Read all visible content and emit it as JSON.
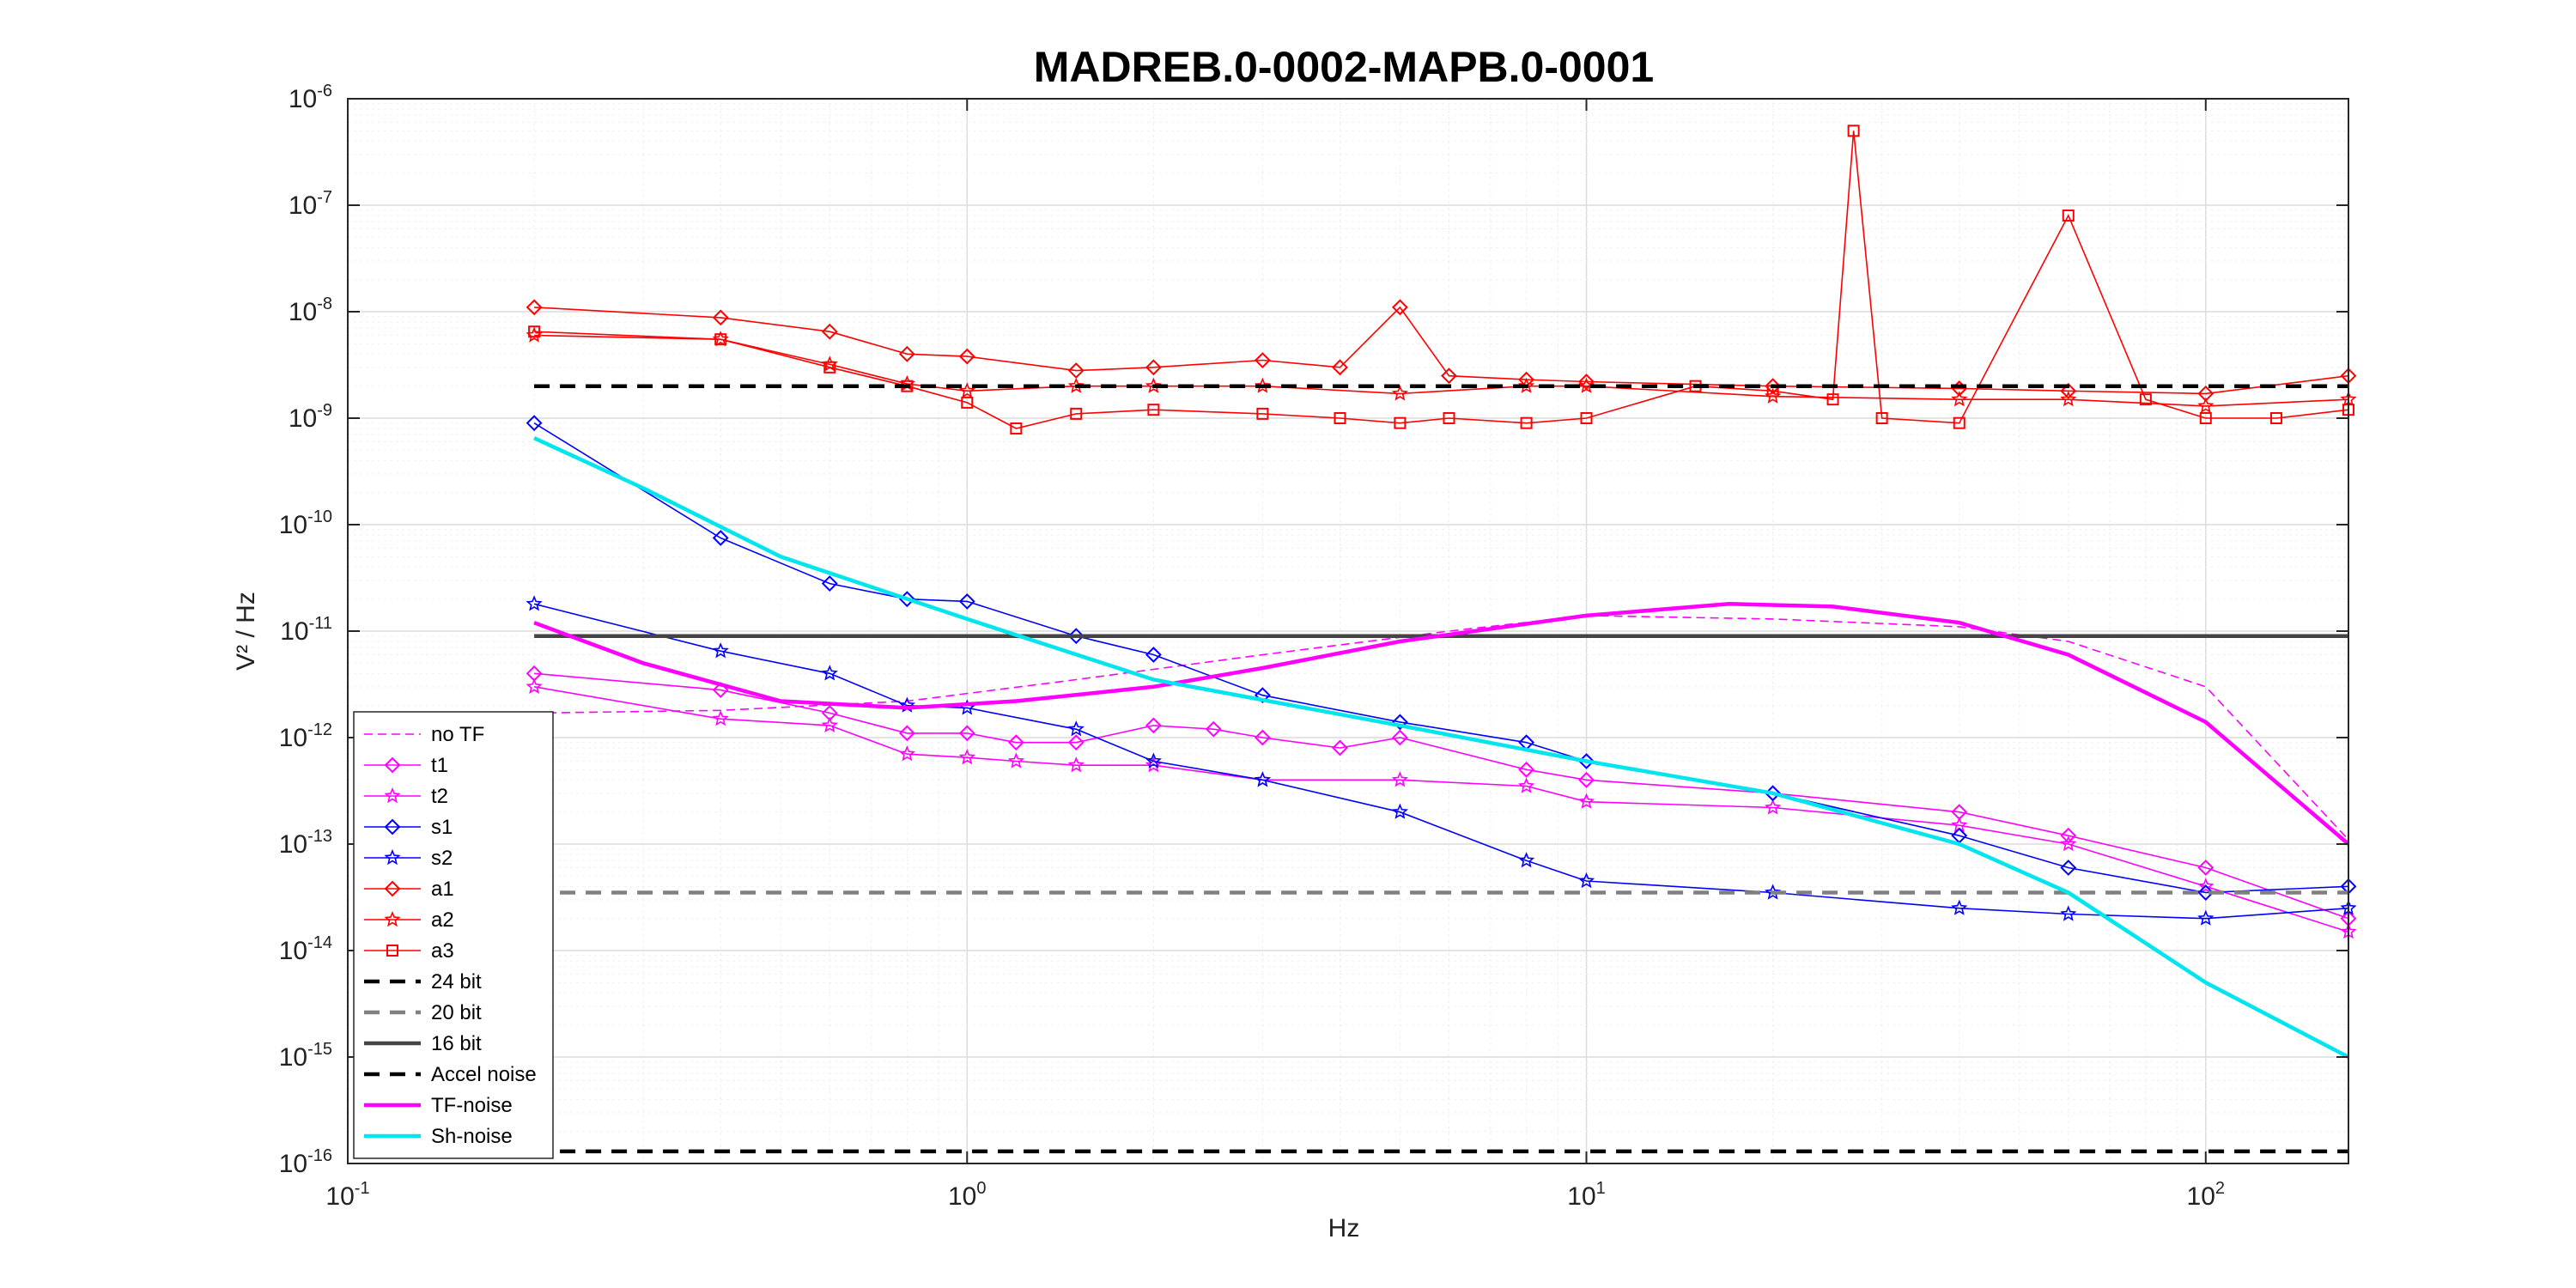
{
  "chart_data": {
    "type": "line",
    "title": "MADREB.0-0002-MAPB.0-0001",
    "xlabel": "Hz",
    "ylabel": "V² / Hz",
    "xscale": "log",
    "yscale": "log",
    "xlim": [
      0.1,
      170
    ],
    "ylim": [
      1e-16,
      1e-06
    ],
    "grid": true,
    "legend_position": "bottom-left",
    "x_ticks": [
      {
        "base": "10",
        "exp": "-1"
      },
      {
        "base": "10",
        "exp": "0"
      },
      {
        "base": "10",
        "exp": "1"
      },
      {
        "base": "10",
        "exp": "2"
      }
    ],
    "y_ticks": [
      {
        "base": "10",
        "exp": "-16"
      },
      {
        "base": "10",
        "exp": "-15"
      },
      {
        "base": "10",
        "exp": "-14"
      },
      {
        "base": "10",
        "exp": "-13"
      },
      {
        "base": "10",
        "exp": "-12"
      },
      {
        "base": "10",
        "exp": "-11"
      },
      {
        "base": "10",
        "exp": "-10"
      },
      {
        "base": "10",
        "exp": "-9"
      },
      {
        "base": "10",
        "exp": "-8"
      },
      {
        "base": "10",
        "exp": "-7"
      },
      {
        "base": "10",
        "exp": "-6"
      }
    ],
    "series": [
      {
        "name": "no TF",
        "color": "#ff00ff",
        "style": "dashed-thin",
        "marker": "none",
        "x": [
          0.2,
          0.4,
          0.8,
          1.5,
          3,
          6,
          10,
          20,
          40,
          60,
          100,
          170
        ],
        "y": [
          1.7e-12,
          1.8e-12,
          2.2e-12,
          3.5e-12,
          6e-12,
          1e-11,
          1.4e-11,
          1.3e-11,
          1.1e-11,
          8e-12,
          3e-12,
          1.1e-13
        ]
      },
      {
        "name": "t1",
        "color": "#ff00ff",
        "style": "solid",
        "marker": "diamond",
        "x": [
          0.2,
          0.4,
          0.6,
          0.8,
          1.0,
          1.2,
          1.5,
          2,
          2.5,
          3,
          4,
          5,
          8,
          10,
          20,
          40,
          60,
          100,
          170
        ],
        "y": [
          4e-12,
          2.8e-12,
          1.7e-12,
          1.1e-12,
          1.1e-12,
          9e-13,
          9e-13,
          1.3e-12,
          1.2e-12,
          1e-12,
          8e-13,
          1e-12,
          5e-13,
          4e-13,
          3e-13,
          2e-13,
          1.2e-13,
          6e-14,
          2e-14
        ]
      },
      {
        "name": "t2",
        "color": "#ff00ff",
        "style": "solid",
        "marker": "star",
        "x": [
          0.2,
          0.4,
          0.6,
          0.8,
          1.0,
          1.2,
          1.5,
          2,
          3,
          5,
          8,
          10,
          20,
          40,
          60,
          100,
          170
        ],
        "y": [
          3e-12,
          1.5e-12,
          1.3e-12,
          7e-13,
          6.5e-13,
          6e-13,
          5.5e-13,
          5.5e-13,
          4e-13,
          4e-13,
          3.5e-13,
          2.5e-13,
          2.2e-13,
          1.5e-13,
          1e-13,
          4e-14,
          1.5e-14
        ]
      },
      {
        "name": "s1",
        "color": "#0000ff",
        "style": "solid",
        "marker": "diamond",
        "x": [
          0.2,
          0.4,
          0.6,
          0.8,
          1.0,
          1.5,
          2,
          3,
          5,
          8,
          10,
          20,
          40,
          60,
          100,
          170
        ],
        "y": [
          9e-10,
          7.5e-11,
          2.8e-11,
          2e-11,
          1.9e-11,
          9e-12,
          6e-12,
          2.5e-12,
          1.4e-12,
          9e-13,
          6e-13,
          3e-13,
          1.2e-13,
          6e-14,
          3.5e-14,
          4e-14
        ]
      },
      {
        "name": "s2",
        "color": "#0000ff",
        "style": "solid",
        "marker": "star",
        "x": [
          0.2,
          0.4,
          0.6,
          0.8,
          1.0,
          1.5,
          2,
          3,
          5,
          8,
          10,
          20,
          40,
          60,
          100,
          170
        ],
        "y": [
          1.8e-11,
          6.5e-12,
          4e-12,
          2e-12,
          1.9e-12,
          1.2e-12,
          6e-13,
          4e-13,
          2e-13,
          7e-14,
          4.5e-14,
          3.5e-14,
          2.5e-14,
          2.2e-14,
          2e-14,
          2.5e-14
        ]
      },
      {
        "name": "a1",
        "color": "#ff0000",
        "style": "solid",
        "marker": "diamond",
        "x": [
          0.2,
          0.4,
          0.6,
          0.8,
          1.0,
          1.5,
          2,
          3,
          4,
          5,
          6,
          8,
          10,
          20,
          40,
          60,
          100,
          170
        ],
        "y": [
          1.1e-08,
          8.8e-09,
          6.5e-09,
          4e-09,
          3.8e-09,
          2.8e-09,
          3e-09,
          3.5e-09,
          3e-09,
          1.1e-08,
          2.5e-09,
          2.3e-09,
          2.2e-09,
          2e-09,
          1.9e-09,
          1.8e-09,
          1.7e-09,
          2.5e-09
        ]
      },
      {
        "name": "a2",
        "color": "#ff0000",
        "style": "solid",
        "marker": "star",
        "x": [
          0.2,
          0.4,
          0.6,
          0.8,
          1.0,
          1.5,
          2,
          3,
          5,
          8,
          10,
          20,
          40,
          60,
          100,
          170
        ],
        "y": [
          6e-09,
          5.5e-09,
          3.2e-09,
          2.1e-09,
          1.8e-09,
          2e-09,
          2e-09,
          2e-09,
          1.7e-09,
          2e-09,
          2e-09,
          1.6e-09,
          1.5e-09,
          1.5e-09,
          1.3e-09,
          1.5e-09
        ]
      },
      {
        "name": "a3",
        "color": "#ff0000",
        "style": "solid",
        "marker": "square",
        "x": [
          0.2,
          0.4,
          0.6,
          0.8,
          1.0,
          1.2,
          1.5,
          2,
          3,
          4,
          5,
          6,
          8,
          10,
          15,
          20,
          25,
          27,
          30,
          40,
          60,
          80,
          100,
          130,
          170
        ],
        "y": [
          6.5e-09,
          5.5e-09,
          3e-09,
          2e-09,
          1.4e-09,
          8e-10,
          1.1e-09,
          1.2e-09,
          1.1e-09,
          1e-09,
          9e-10,
          1e-09,
          9e-10,
          1e-09,
          2e-09,
          1.8e-09,
          1.5e-09,
          5e-07,
          1e-09,
          9e-10,
          8e-08,
          1.5e-09,
          1e-09,
          1e-09,
          1.2e-09
        ]
      },
      {
        "name": "24 bit",
        "color": "#000000",
        "style": "dashed",
        "marker": "none",
        "x": [
          0.2,
          170
        ],
        "y": [
          2e-09,
          2e-09
        ]
      },
      {
        "name": "20 bit",
        "color": "#808080",
        "style": "dashed",
        "marker": "none",
        "x": [
          0.2,
          170
        ],
        "y": [
          3.5e-14,
          3.5e-14
        ]
      },
      {
        "name": "16 bit",
        "color": "#444444",
        "style": "solid-thick",
        "marker": "none",
        "x": [
          0.2,
          170
        ],
        "y": [
          9e-12,
          9e-12
        ]
      },
      {
        "name": "Accel noise",
        "color": "#000000",
        "style": "dashed",
        "marker": "none",
        "x": [
          0.2,
          170
        ],
        "y": [
          1.3e-16,
          1.3e-16
        ]
      },
      {
        "name": "TF-noise",
        "color": "#ff00ff",
        "style": "solid-thick",
        "marker": "none",
        "x": [
          0.2,
          0.3,
          0.5,
          0.8,
          1.2,
          2,
          3,
          5,
          10,
          17,
          25,
          40,
          60,
          100,
          170
        ],
        "y": [
          1.2e-11,
          5e-12,
          2.2e-12,
          1.9e-12,
          2.2e-12,
          3e-12,
          4.5e-12,
          8e-12,
          1.4e-11,
          1.8e-11,
          1.7e-11,
          1.2e-11,
          6e-12,
          1.4e-12,
          1e-13
        ]
      },
      {
        "name": "Sh-noise",
        "color": "#00e5ee",
        "style": "solid-thick",
        "marker": "none",
        "x": [
          0.2,
          0.3,
          0.5,
          1.0,
          2,
          5,
          10,
          20,
          40,
          60,
          100,
          170
        ],
        "y": [
          6.5e-10,
          2.2e-10,
          5e-11,
          1.3e-11,
          3.5e-12,
          1.3e-12,
          6e-13,
          3e-13,
          1e-13,
          3.5e-14,
          5e-15,
          1e-15
        ]
      }
    ]
  }
}
